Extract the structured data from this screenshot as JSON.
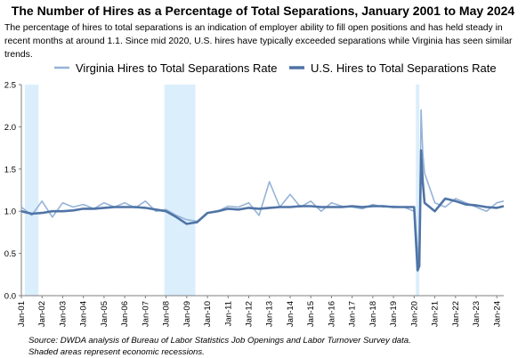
{
  "title": "The Number of Hires as a Percentage of Total Separations, January 2001 to May 2024",
  "subtitle": "The percentage of hires to total separations is an indication of employer ability to fill open positions and has held steady in recent months at around 1.1. Since mid 2020, U.S. hires have typically exceeded separations while Virginia has seen similar trends.",
  "footer": {
    "source": "Source: DWDA analysis of Bureau of Labor Statistics Job Openings and Labor Turnover Survey data.",
    "shade_note": "Shaded areas represent economic recessions."
  },
  "colors": {
    "virginia": "#95b3d7",
    "us": "#4f74a6",
    "recession": "#dbeefc",
    "grid": "#d9d9d9",
    "axis": "#7f7f7f"
  },
  "chart_data": {
    "type": "line",
    "title": "The Number of Hires as a Percentage of Total Separations, January 2001 to May 2024",
    "xlabel": "",
    "ylabel": "",
    "ylim": [
      0,
      2.5
    ],
    "yticks": [
      "0.0",
      "0.5",
      "1.0",
      "1.5",
      "2.0",
      "2.5"
    ],
    "x_start": "2001-01",
    "x_end": "2024-05",
    "xtick_labels": [
      "Jan-01",
      "Jan-02",
      "Jan-03",
      "Jan-04",
      "Jan-05",
      "Jan-06",
      "Jan-07",
      "Jan-08",
      "Jan-09",
      "Jan-10",
      "Jan-11",
      "Jan-12",
      "Jan-13",
      "Jan-14",
      "Jan-15",
      "Jan-16",
      "Jan-17",
      "Jan-18",
      "Jan-19",
      "Jan-20",
      "Jan-21",
      "Jan-22",
      "Jan-23",
      "Jan-24"
    ],
    "grid": false,
    "legend_position": "top",
    "recessions": [
      {
        "start": "2001-03",
        "end": "2001-11"
      },
      {
        "start": "2007-12",
        "end": "2009-06"
      },
      {
        "start": "2020-02",
        "end": "2020-04"
      }
    ],
    "series": [
      {
        "name": "Virginia Hires to Total Separations Rate",
        "x": [
          "2001-01",
          "2001-07",
          "2002-01",
          "2002-07",
          "2003-01",
          "2003-07",
          "2004-01",
          "2004-07",
          "2005-01",
          "2005-07",
          "2006-01",
          "2006-07",
          "2007-01",
          "2007-07",
          "2008-01",
          "2008-07",
          "2009-01",
          "2009-07",
          "2010-01",
          "2010-07",
          "2011-01",
          "2011-07",
          "2012-01",
          "2012-07",
          "2013-01",
          "2013-07",
          "2014-01",
          "2014-07",
          "2015-01",
          "2015-07",
          "2016-01",
          "2016-07",
          "2017-01",
          "2017-07",
          "2018-01",
          "2018-07",
          "2019-01",
          "2019-07",
          "2020-01",
          "2020-03",
          "2020-04",
          "2020-05",
          "2020-06",
          "2020-07",
          "2021-01",
          "2021-07",
          "2022-01",
          "2022-07",
          "2023-01",
          "2023-07",
          "2024-01",
          "2024-05"
        ],
        "values": [
          1.05,
          0.95,
          1.12,
          0.93,
          1.1,
          1.05,
          1.08,
          1.03,
          1.1,
          1.05,
          1.1,
          1.04,
          1.12,
          1.0,
          1.02,
          0.95,
          0.9,
          0.88,
          0.98,
          1.0,
          1.06,
          1.05,
          1.1,
          0.95,
          1.35,
          1.05,
          1.2,
          1.05,
          1.12,
          1.0,
          1.1,
          1.06,
          1.05,
          1.03,
          1.08,
          1.05,
          1.06,
          1.05,
          1.0,
          0.55,
          0.35,
          2.2,
          1.7,
          1.45,
          1.1,
          1.05,
          1.15,
          1.1,
          1.05,
          1.0,
          1.1,
          1.12
        ]
      },
      {
        "name": "U.S. Hires to Total Separations Rate",
        "x": [
          "2001-01",
          "2001-07",
          "2002-01",
          "2002-07",
          "2003-01",
          "2003-07",
          "2004-01",
          "2004-07",
          "2005-01",
          "2005-07",
          "2006-01",
          "2006-07",
          "2007-01",
          "2007-07",
          "2008-01",
          "2008-07",
          "2009-01",
          "2009-07",
          "2010-01",
          "2010-07",
          "2011-01",
          "2011-07",
          "2012-01",
          "2012-07",
          "2013-01",
          "2013-07",
          "2014-01",
          "2014-07",
          "2015-01",
          "2015-07",
          "2016-01",
          "2016-07",
          "2017-01",
          "2017-07",
          "2018-01",
          "2018-07",
          "2019-01",
          "2019-07",
          "2020-01",
          "2020-03",
          "2020-04",
          "2020-05",
          "2020-06",
          "2020-07",
          "2021-01",
          "2021-07",
          "2022-01",
          "2022-07",
          "2023-01",
          "2023-07",
          "2024-01",
          "2024-05"
        ],
        "values": [
          1.0,
          0.97,
          0.98,
          1.0,
          1.0,
          1.01,
          1.03,
          1.03,
          1.04,
          1.05,
          1.05,
          1.05,
          1.04,
          1.02,
          1.0,
          0.93,
          0.85,
          0.87,
          0.98,
          1.0,
          1.03,
          1.02,
          1.04,
          1.03,
          1.04,
          1.05,
          1.05,
          1.06,
          1.06,
          1.05,
          1.05,
          1.05,
          1.06,
          1.05,
          1.06,
          1.06,
          1.05,
          1.05,
          1.05,
          0.3,
          0.35,
          1.72,
          1.35,
          1.1,
          1.0,
          1.15,
          1.12,
          1.08,
          1.07,
          1.05,
          1.04,
          1.06
        ]
      }
    ]
  }
}
